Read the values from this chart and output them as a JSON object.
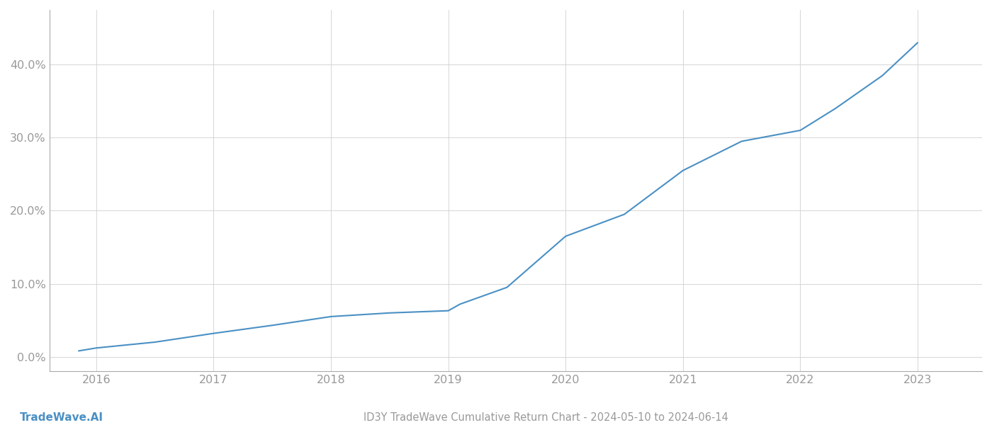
{
  "x_years": [
    2015.85,
    2016.0,
    2016.5,
    2017.0,
    2017.5,
    2018.0,
    2018.5,
    2019.0,
    2019.1,
    2019.5,
    2020.0,
    2020.5,
    2021.0,
    2021.5,
    2022.0,
    2022.3,
    2022.7,
    2023.0
  ],
  "y_values": [
    0.008,
    0.012,
    0.02,
    0.032,
    0.043,
    0.055,
    0.06,
    0.063,
    0.072,
    0.095,
    0.165,
    0.195,
    0.255,
    0.295,
    0.31,
    0.34,
    0.385,
    0.43
  ],
  "line_color": "#4a90c4",
  "line_width": 1.5,
  "background_color": "#ffffff",
  "grid_color": "#d0d0d0",
  "tick_color": "#999999",
  "spine_color": "#aaaaaa",
  "title": "ID3Y TradeWave Cumulative Return Chart - 2024-05-10 to 2024-06-14",
  "watermark": "TradeWave.AI",
  "watermark_color": "#4a90c4",
  "x_ticks": [
    2016,
    2017,
    2018,
    2019,
    2020,
    2021,
    2022,
    2023
  ],
  "y_ticks": [
    0.0,
    0.1,
    0.2,
    0.3,
    0.4
  ],
  "y_tick_labels": [
    "0.0%",
    "10.0%",
    "20.0%",
    "30.0%",
    "40.0%"
  ],
  "xlim": [
    2015.6,
    2023.55
  ],
  "ylim": [
    -0.02,
    0.475
  ]
}
